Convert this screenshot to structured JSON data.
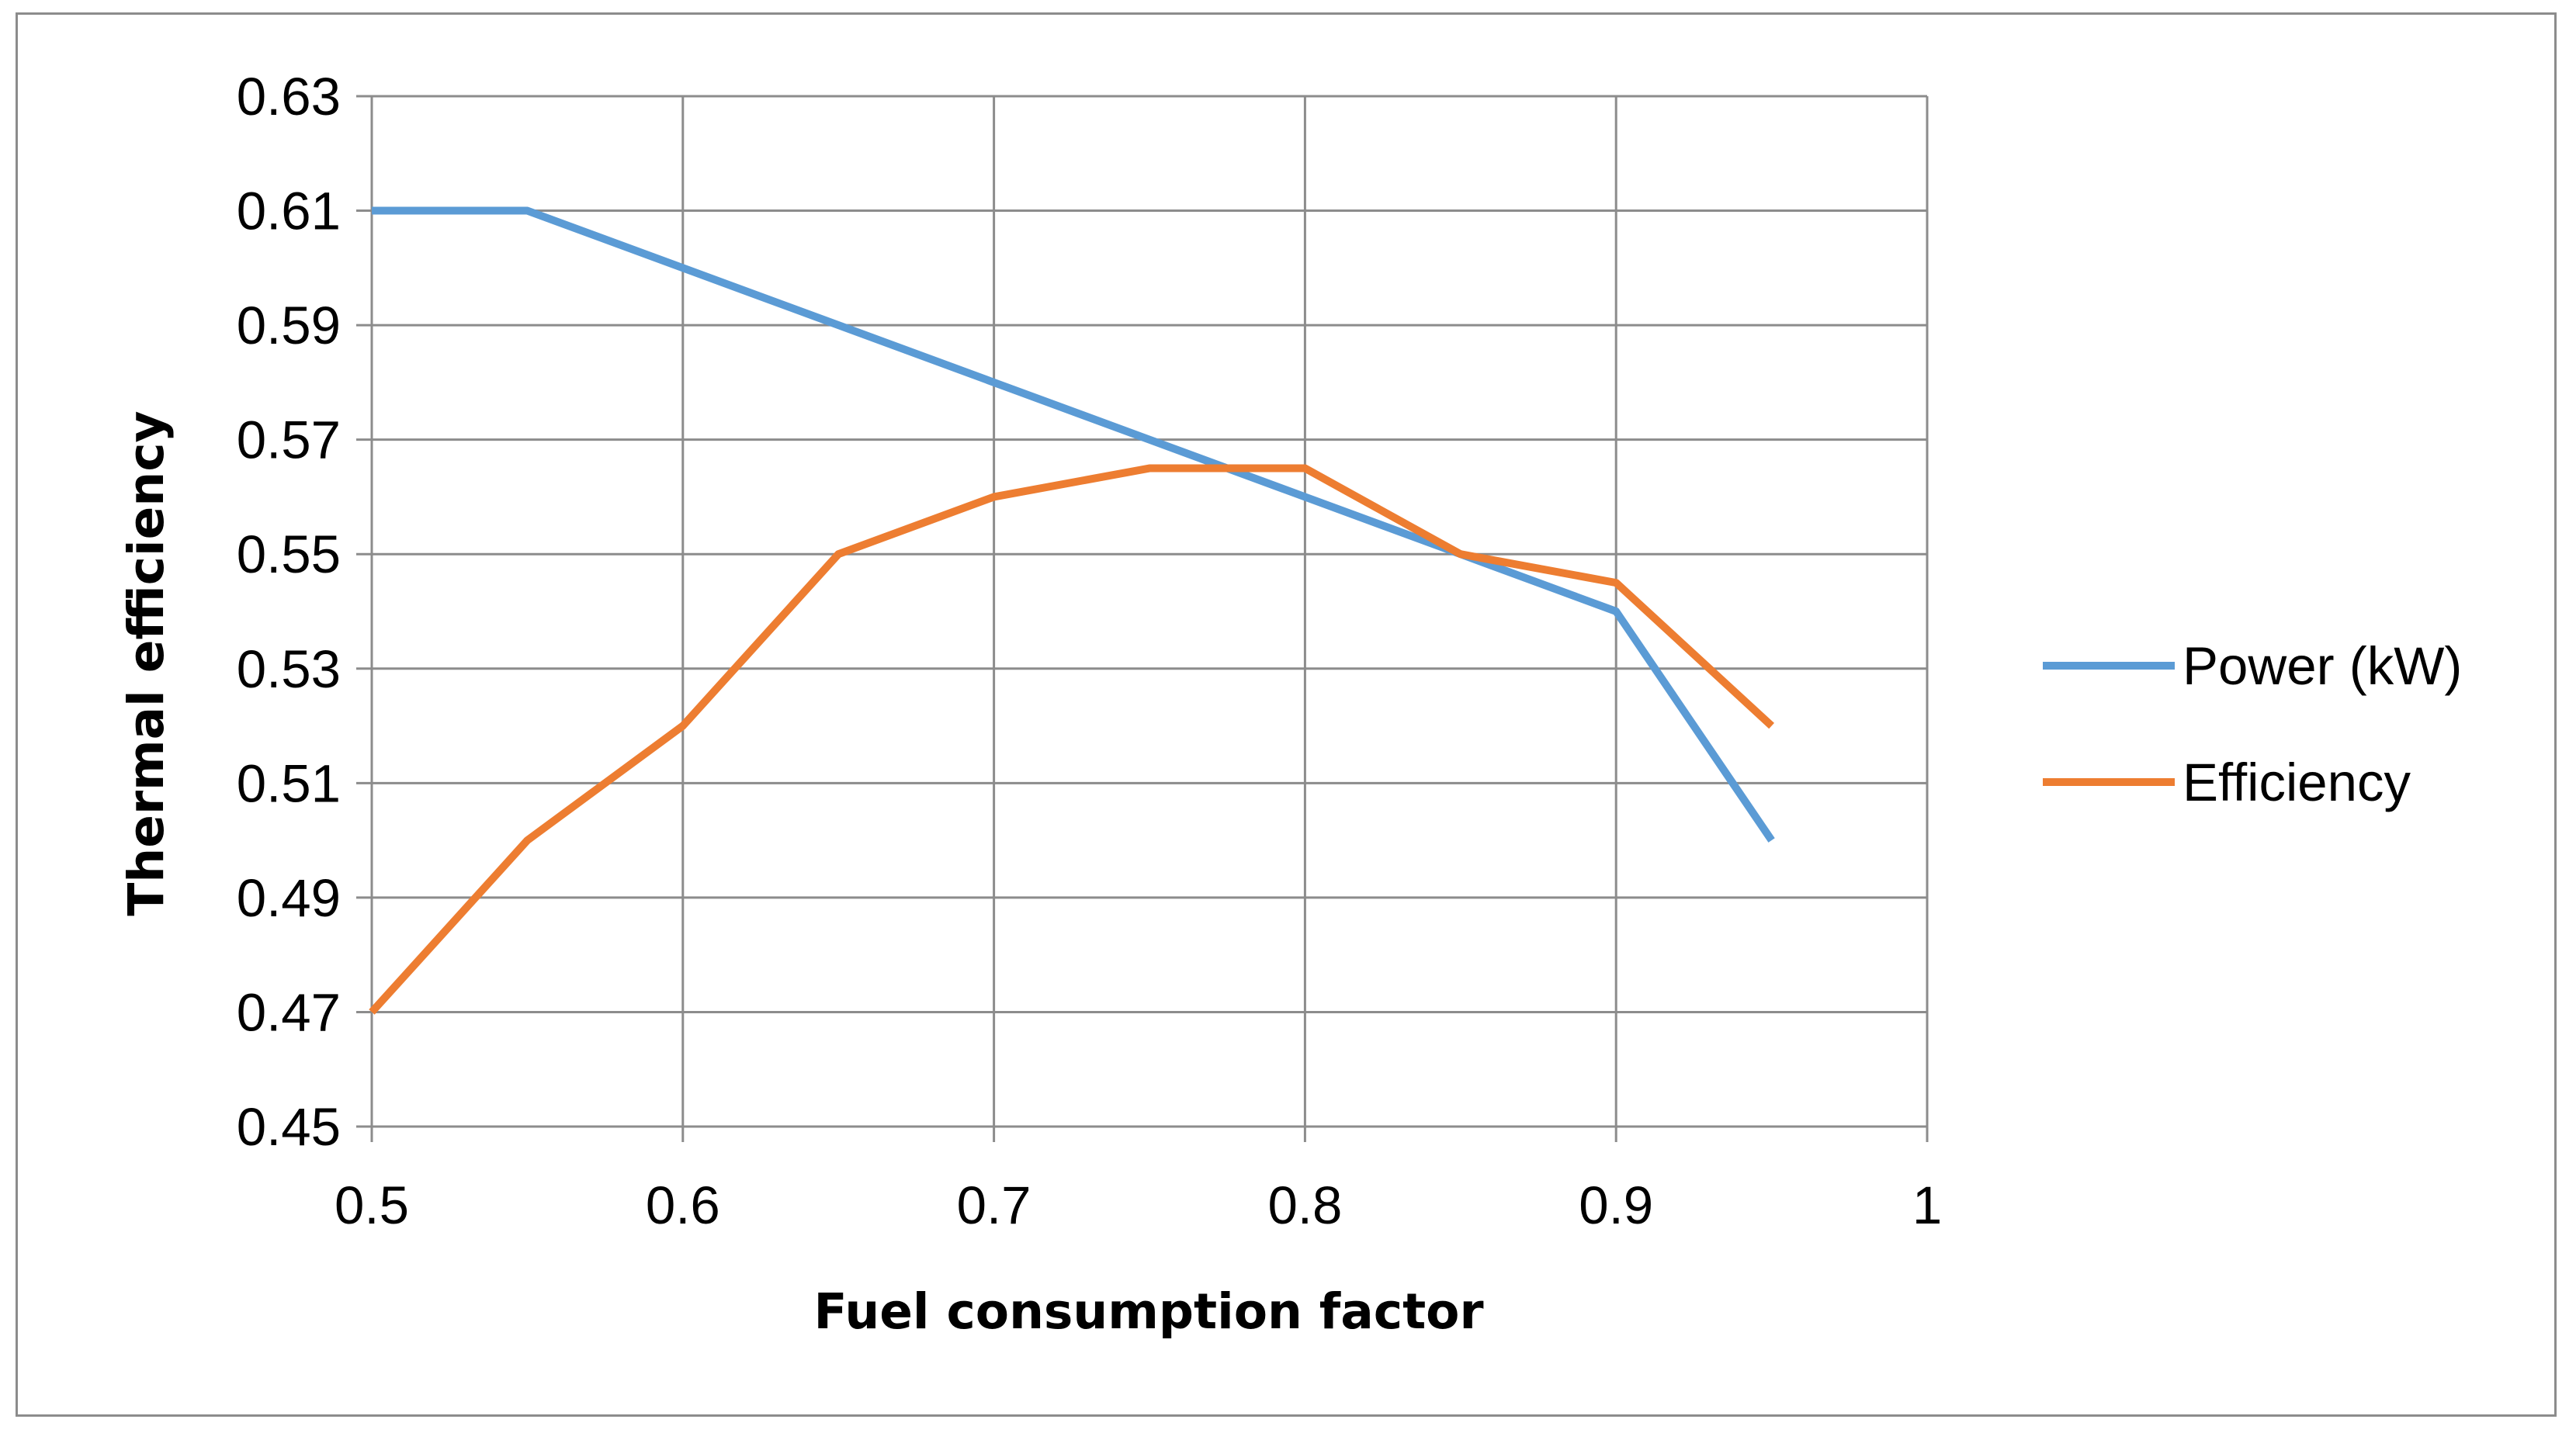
{
  "chart_data": {
    "type": "line",
    "title": "",
    "xlabel": "Fuel consumption factor",
    "ylabel": "Thermal efficiency",
    "xlim": [
      0.5,
      1
    ],
    "ylim": [
      0.45,
      0.63
    ],
    "xticks": [
      0.5,
      0.6,
      0.7,
      0.8,
      0.9,
      1
    ],
    "xtick_labels": [
      "0.5",
      "0.6",
      "0.7",
      "0.8",
      "0.9",
      "1"
    ],
    "yticks": [
      0.45,
      0.47,
      0.49,
      0.51,
      0.53,
      0.55,
      0.57,
      0.59,
      0.61,
      0.63
    ],
    "ytick_labels": [
      "0.45",
      "0.47",
      "0.49",
      "0.51",
      "0.53",
      "0.55",
      "0.57",
      "0.59",
      "0.61",
      "0.63"
    ],
    "grid": true,
    "legend_position": "right",
    "x": [
      0.5,
      0.55,
      0.6,
      0.65,
      0.7,
      0.75,
      0.8,
      0.85,
      0.9,
      0.95
    ],
    "series": [
      {
        "name": "Power (kW)",
        "color": "#5b9bd5",
        "values": [
          0.61,
          0.61,
          0.6,
          0.59,
          0.58,
          0.57,
          0.56,
          0.55,
          0.54,
          0.5
        ]
      },
      {
        "name": "Efficiency",
        "color": "#ed7d31",
        "values": [
          0.47,
          0.5,
          0.52,
          0.55,
          0.56,
          0.565,
          0.565,
          0.55,
          0.545,
          0.52
        ]
      }
    ]
  }
}
